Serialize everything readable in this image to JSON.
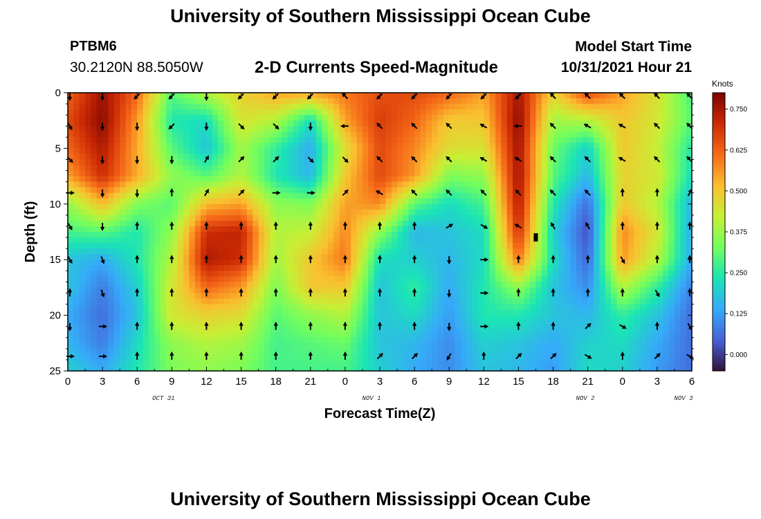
{
  "header": {
    "title": "University of Southern Mississippi Ocean Cube",
    "station": "PTBM6",
    "coordinates": "30.2120N  88.5050W",
    "subtitle": "2-D Currents Speed-Magnitude",
    "start_label": "Model Start Time",
    "start_time": "10/31/2021 Hour 21"
  },
  "footer": {
    "title": "University of Southern Mississippi Ocean Cube"
  },
  "colors": {
    "speed_scale": [
      "#30123b",
      "#4662d7",
      "#36aaf9",
      "#1ae4b6",
      "#72fe5e",
      "#c7ef34",
      "#fabf2f",
      "#f66b19",
      "#cb2a04",
      "#7a0403"
    ]
  },
  "chart_data": {
    "type": "heatmap",
    "title": "2-D Currents Speed-Magnitude",
    "xlabel": "Forecast Time(Z)",
    "ylabel": "Depth (ft)",
    "xlim": [
      0,
      54
    ],
    "ylim": [
      0,
      25
    ],
    "x_ticks": [
      0,
      3,
      6,
      9,
      12,
      15,
      18,
      21,
      24,
      27,
      30,
      33,
      36,
      39,
      42,
      45,
      48,
      51,
      54
    ],
    "x_tick_labels": [
      "0",
      "3",
      "6",
      "9",
      "12",
      "15",
      "18",
      "21",
      "0",
      "3",
      "6",
      "9",
      "12",
      "15",
      "18",
      "21",
      "0",
      "3",
      "6"
    ],
    "y_ticks": [
      0,
      5,
      10,
      15,
      20,
      25
    ],
    "y_tick_labels": [
      "0",
      "5",
      "10",
      "15",
      "20",
      "25"
    ],
    "date_labels": [
      {
        "x": 9,
        "label": "OCT 31"
      },
      {
        "x": 27,
        "label": "NOV 1"
      },
      {
        "x": 45.5,
        "label": "NOV 2"
      },
      {
        "x": 54,
        "label": "NOV 3"
      }
    ],
    "colorbar": {
      "unit": "Knots",
      "range": [
        -0.05,
        0.8
      ],
      "ticks": [
        0.0,
        0.125,
        0.25,
        0.375,
        0.5,
        0.625,
        0.75
      ],
      "tick_labels": [
        "0.000",
        "0.125",
        "0.250",
        "0.375",
        "0.500",
        "0.625",
        "0.750"
      ]
    },
    "series": [
      {
        "name": "speed",
        "x": [
          0,
          3,
          6,
          9,
          12,
          15,
          18,
          21,
          24,
          27,
          30,
          33,
          36,
          39,
          42,
          45,
          48,
          51,
          54
        ],
        "depth": [
          0,
          2.5,
          5,
          7.5,
          10,
          12.5,
          15,
          17.5,
          20,
          22.5,
          25
        ],
        "values_knots": [
          [
            0.62,
            0.76,
            0.62,
            0.3,
            0.4,
            0.48,
            0.55,
            0.55,
            0.6,
            0.65,
            0.66,
            0.62,
            0.55,
            0.75,
            0.48,
            0.66,
            0.55,
            0.45,
            0.28
          ],
          [
            0.66,
            0.78,
            0.56,
            0.24,
            0.22,
            0.45,
            0.4,
            0.22,
            0.55,
            0.68,
            0.62,
            0.5,
            0.5,
            0.78,
            0.38,
            0.4,
            0.5,
            0.44,
            0.3
          ],
          [
            0.62,
            0.74,
            0.54,
            0.3,
            0.18,
            0.38,
            0.26,
            0.14,
            0.46,
            0.66,
            0.58,
            0.46,
            0.45,
            0.76,
            0.32,
            0.2,
            0.5,
            0.42,
            0.24
          ],
          [
            0.55,
            0.7,
            0.54,
            0.36,
            0.3,
            0.4,
            0.24,
            0.16,
            0.5,
            0.66,
            0.56,
            0.34,
            0.36,
            0.76,
            0.3,
            0.16,
            0.48,
            0.44,
            0.22
          ],
          [
            0.36,
            0.52,
            0.34,
            0.3,
            0.52,
            0.55,
            0.36,
            0.34,
            0.55,
            0.58,
            0.3,
            0.22,
            0.28,
            0.74,
            0.24,
            0.06,
            0.5,
            0.4,
            0.16
          ],
          [
            0.28,
            0.3,
            0.24,
            0.36,
            0.7,
            0.72,
            0.4,
            0.42,
            0.58,
            0.36,
            0.16,
            0.18,
            0.22,
            0.7,
            0.2,
            0.02,
            0.58,
            0.44,
            0.14
          ],
          [
            0.18,
            0.14,
            0.24,
            0.4,
            0.74,
            0.7,
            0.38,
            0.5,
            0.6,
            0.22,
            0.2,
            0.16,
            0.22,
            0.6,
            0.22,
            0.05,
            0.56,
            0.4,
            0.14
          ],
          [
            0.18,
            0.08,
            0.2,
            0.44,
            0.62,
            0.56,
            0.34,
            0.5,
            0.5,
            0.18,
            0.26,
            0.14,
            0.24,
            0.36,
            0.18,
            0.1,
            0.4,
            0.26,
            0.08
          ],
          [
            0.14,
            0.06,
            0.18,
            0.44,
            0.48,
            0.46,
            0.3,
            0.36,
            0.4,
            0.18,
            0.22,
            0.12,
            0.24,
            0.24,
            0.18,
            0.16,
            0.26,
            0.18,
            0.06
          ],
          [
            0.16,
            0.08,
            0.22,
            0.36,
            0.4,
            0.38,
            0.28,
            0.3,
            0.32,
            0.18,
            0.16,
            0.1,
            0.2,
            0.18,
            0.14,
            0.2,
            0.22,
            0.14,
            0.06
          ],
          [
            0.2,
            0.14,
            0.24,
            0.34,
            0.36,
            0.34,
            0.28,
            0.28,
            0.28,
            0.2,
            0.14,
            0.1,
            0.18,
            0.16,
            0.12,
            0.22,
            0.2,
            0.12,
            0.06
          ]
        ]
      }
    ],
    "vectors": {
      "x": [
        0,
        3,
        6,
        9,
        12,
        15,
        18,
        21,
        24,
        27,
        30,
        33,
        36,
        39,
        42,
        45,
        48,
        51,
        54
      ],
      "depth": [
        0,
        3,
        6,
        9,
        12,
        15,
        18,
        21,
        24
      ],
      "direction_deg": [
        [
          180,
          180,
          225,
          225,
          180,
          225,
          225,
          225,
          315,
          225,
          225,
          225,
          225,
          225,
          315,
          315,
          315,
          315,
          315
        ],
        [
          150,
          180,
          180,
          225,
          180,
          135,
          135,
          180,
          270,
          315,
          315,
          315,
          300,
          270,
          315,
          300,
          300,
          315,
          315
        ],
        [
          135,
          180,
          180,
          180,
          30,
          45,
          45,
          135,
          135,
          315,
          315,
          315,
          300,
          300,
          315,
          315,
          300,
          315,
          315
        ],
        [
          90,
          180,
          180,
          0,
          30,
          45,
          90,
          90,
          45,
          300,
          315,
          315,
          315,
          315,
          315,
          315,
          0,
          0,
          30
        ],
        [
          150,
          180,
          0,
          0,
          0,
          0,
          0,
          0,
          0,
          0,
          0,
          60,
          120,
          300,
          330,
          330,
          0,
          0,
          0
        ],
        [
          150,
          160,
          0,
          0,
          0,
          0,
          0,
          0,
          0,
          0,
          0,
          180,
          90,
          0,
          0,
          0,
          150,
          0,
          0
        ],
        [
          0,
          160,
          0,
          0,
          0,
          0,
          0,
          0,
          0,
          0,
          0,
          180,
          90,
          0,
          0,
          0,
          0,
          150,
          0
        ],
        [
          180,
          90,
          0,
          0,
          0,
          0,
          0,
          0,
          0,
          0,
          0,
          180,
          90,
          0,
          0,
          45,
          120,
          0,
          150
        ],
        [
          90,
          90,
          0,
          0,
          0,
          0,
          0,
          0,
          0,
          45,
          45,
          210,
          0,
          45,
          45,
          120,
          0,
          45,
          120
        ]
      ],
      "marker": {
        "x": 40.5,
        "depth": 13
      }
    }
  }
}
